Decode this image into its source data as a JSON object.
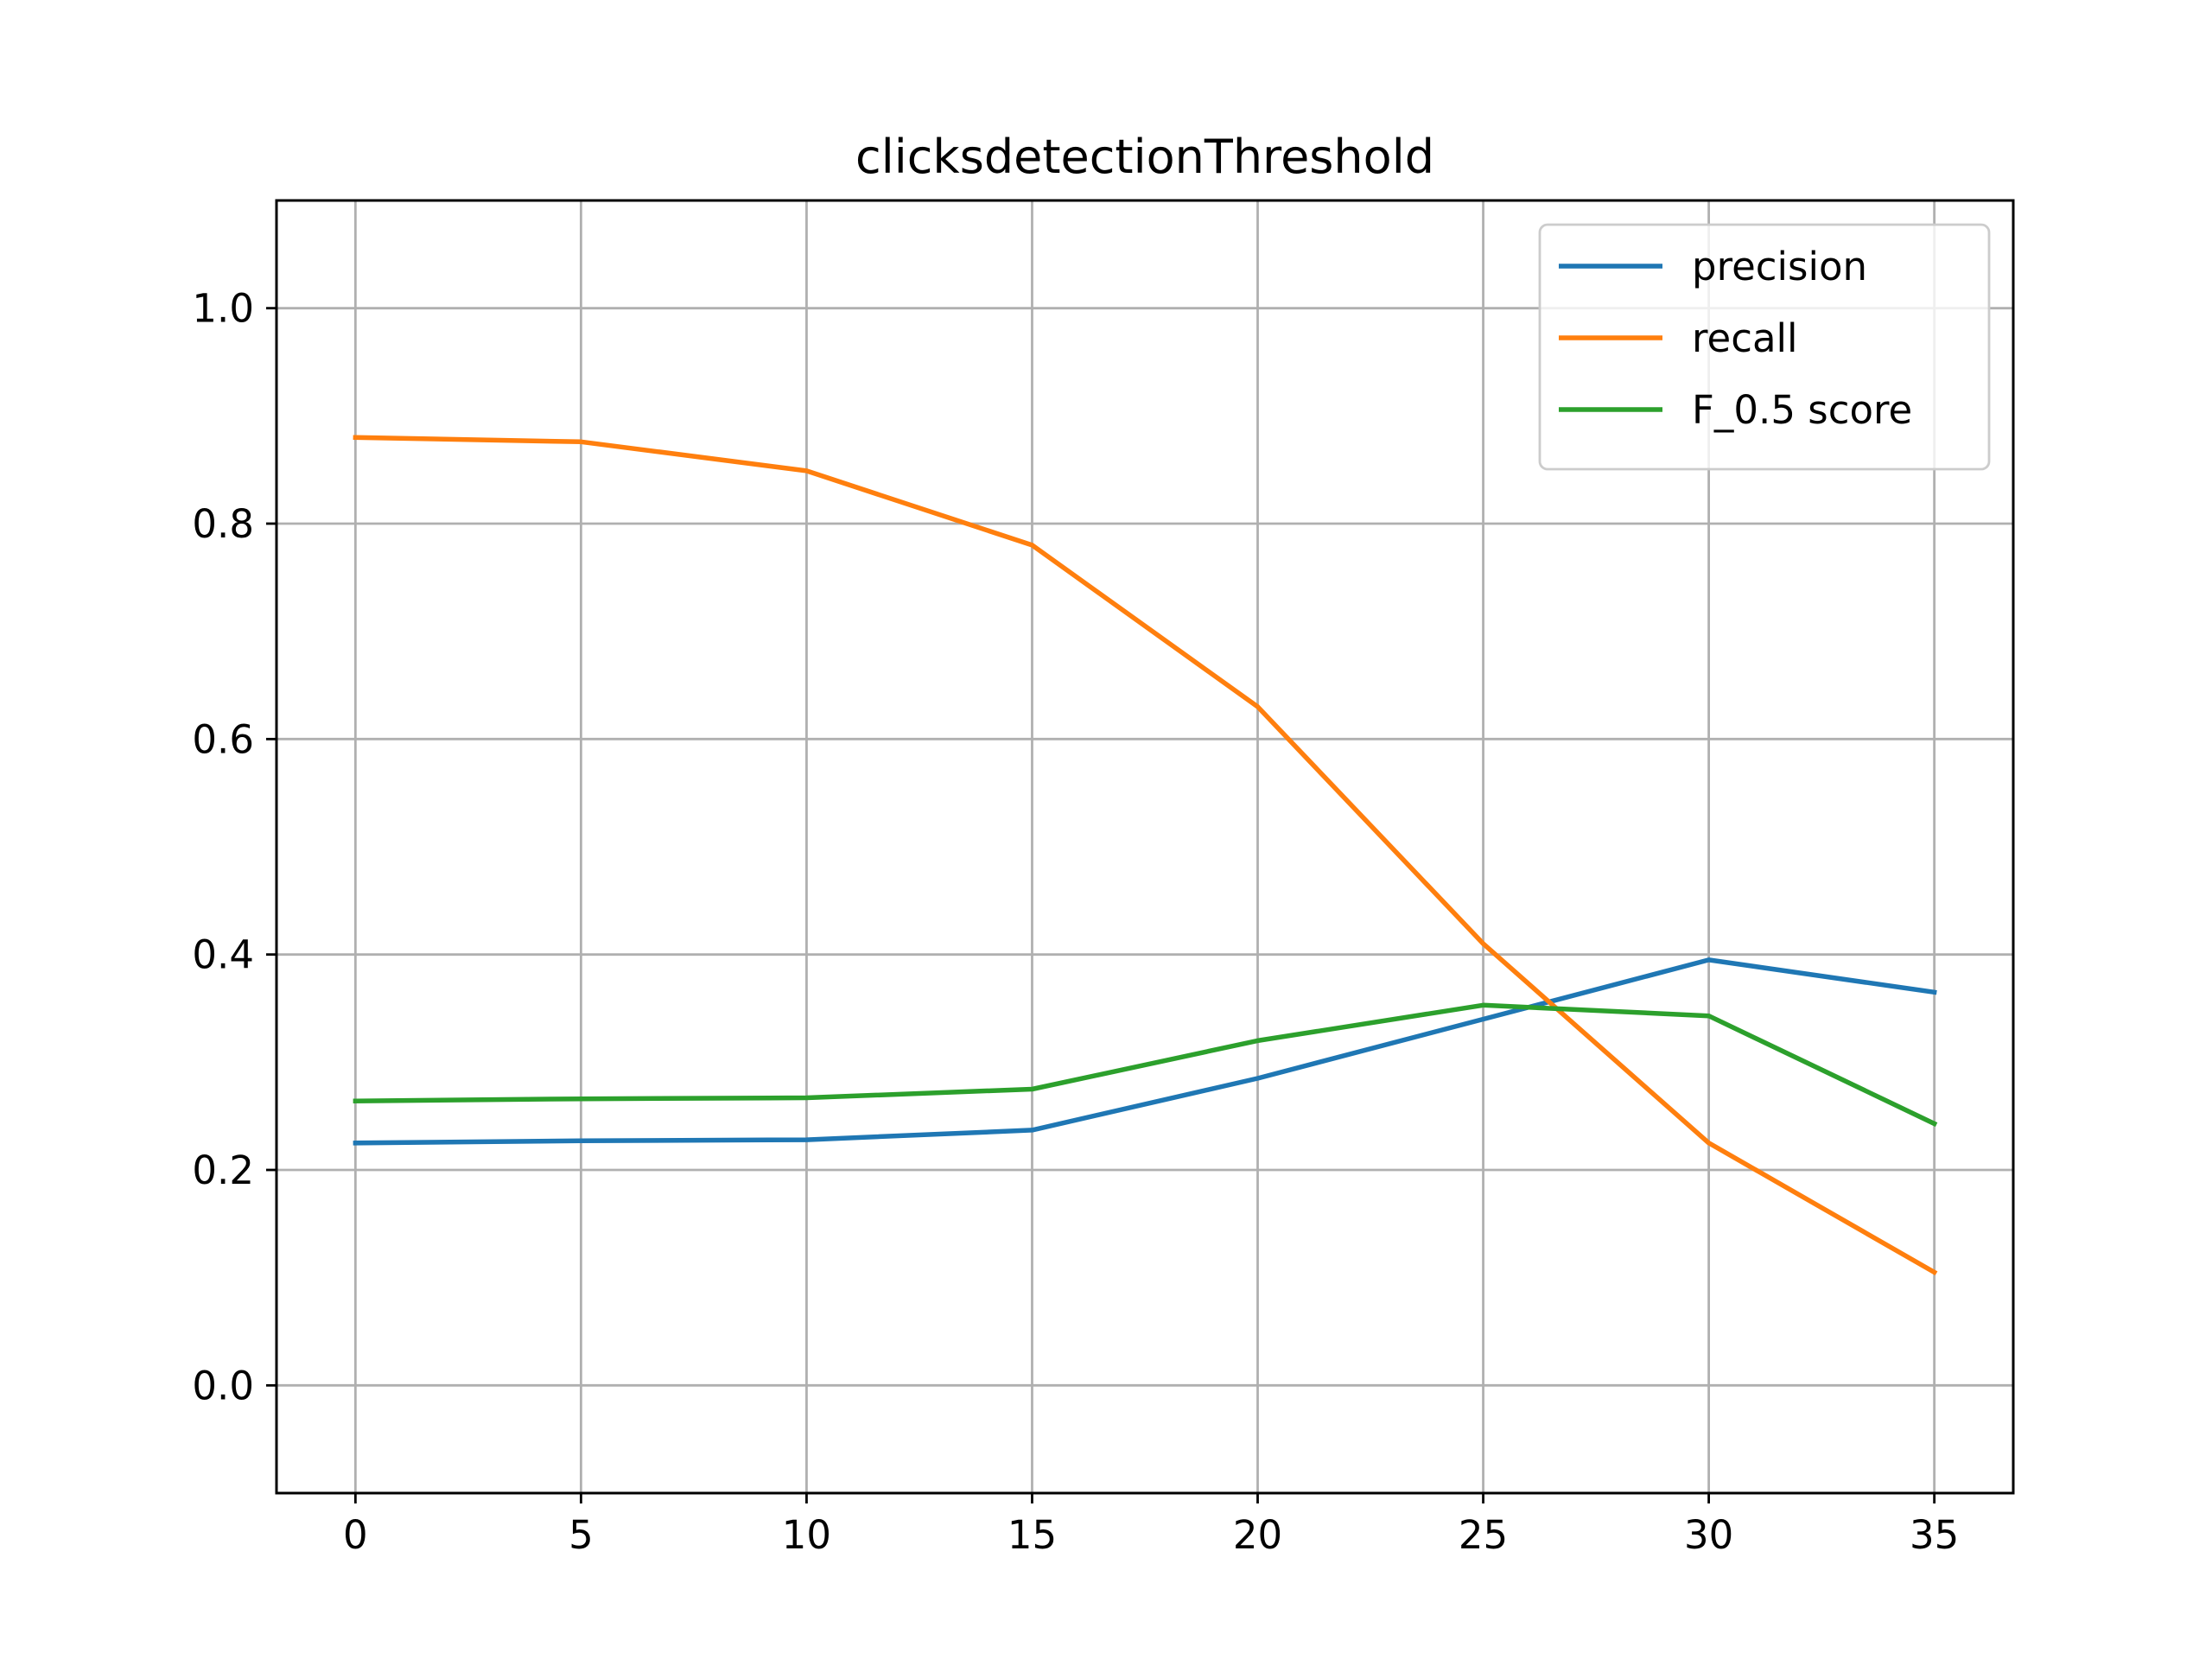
{
  "chart_data": {
    "type": "line",
    "title": "clicksdetectionThreshold",
    "xlabel": "",
    "ylabel": "",
    "x": [
      0,
      5,
      10,
      15,
      20,
      25,
      30,
      35
    ],
    "series": [
      {
        "name": "precision",
        "color": "#1f77b4",
        "values": [
          0.225,
          0.227,
          0.228,
          0.237,
          0.285,
          0.34,
          0.395,
          0.365
        ]
      },
      {
        "name": "recall",
        "color": "#ff7f0e",
        "values": [
          0.88,
          0.876,
          0.849,
          0.78,
          0.63,
          0.41,
          0.225,
          0.105
        ]
      },
      {
        "name": "F_0.5 score",
        "color": "#2ca02c",
        "values": [
          0.264,
          0.266,
          0.267,
          0.275,
          0.32,
          0.353,
          0.343,
          0.243
        ]
      }
    ],
    "xlim": [
      -1.75,
      36.75
    ],
    "ylim": [
      -0.1,
      1.1
    ],
    "xticks": [
      "0",
      "5",
      "10",
      "15",
      "20",
      "25",
      "30",
      "35"
    ],
    "yticks": [
      "0.0",
      "0.2",
      "0.4",
      "0.6",
      "0.8",
      "1.0"
    ],
    "grid": true,
    "legend_position": "upper right"
  }
}
